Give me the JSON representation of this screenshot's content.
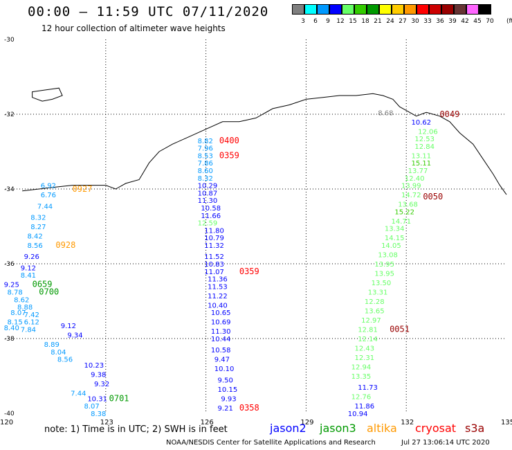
{
  "header": {
    "title": "00:00 – 11:59 UTC 07/11/2020",
    "subtitle": "12 hour collection of altimeter wave heights"
  },
  "scale": {
    "unit": "(ft)",
    "colors": [
      "#7f7f7f",
      "#00ffff",
      "#0099ff",
      "#0000ff",
      "#66ff66",
      "#33cc00",
      "#009900",
      "#ffff00",
      "#ffcc00",
      "#ff9900",
      "#ff0000",
      "#cc0000",
      "#990000",
      "#663333",
      "#ff66ff",
      "#000000"
    ],
    "labels": [
      "3",
      "6",
      "9",
      "12",
      "15",
      "18",
      "21",
      "24",
      "27",
      "30",
      "33",
      "36",
      "39",
      "42",
      "45",
      "70"
    ]
  },
  "map": {
    "lon_range": [
      120,
      135
    ],
    "lat_range": [
      -40,
      -30
    ],
    "lon_ticks": [
      {
        "v": 120,
        "t": "120"
      },
      {
        "v": 123,
        "t": "123"
      },
      {
        "v": 126,
        "t": "126"
      },
      {
        "v": 129,
        "t": "129"
      },
      {
        "v": 132,
        "t": "132"
      },
      {
        "v": 135,
        "t": "135"
      }
    ],
    "lat_ticks": [
      {
        "v": -30,
        "t": "-30"
      },
      {
        "v": -32,
        "t": "-32"
      },
      {
        "v": -34,
        "t": "-34"
      },
      {
        "v": -36,
        "t": "-36"
      },
      {
        "v": -38,
        "t": "-38"
      },
      {
        "v": -40,
        "t": "-40"
      }
    ],
    "coastline": [
      [
        120.5,
        -34.05
      ],
      [
        121.0,
        -34.0
      ],
      [
        121.5,
        -33.95
      ],
      [
        122.0,
        -33.9
      ],
      [
        122.5,
        -33.9
      ],
      [
        123.0,
        -33.9
      ],
      [
        123.3,
        -34.0
      ],
      [
        123.6,
        -33.85
      ],
      [
        124.0,
        -33.75
      ],
      [
        124.3,
        -33.3
      ],
      [
        124.6,
        -33.0
      ],
      [
        125.0,
        -32.8
      ],
      [
        125.5,
        -32.6
      ],
      [
        126.0,
        -32.4
      ],
      [
        126.5,
        -32.2
      ],
      [
        127.0,
        -32.2
      ],
      [
        127.5,
        -32.1
      ],
      [
        128.0,
        -31.85
      ],
      [
        128.5,
        -31.75
      ],
      [
        129.0,
        -31.6
      ],
      [
        129.5,
        -31.55
      ],
      [
        130.0,
        -31.5
      ],
      [
        130.5,
        -31.5
      ],
      [
        131.0,
        -31.45
      ],
      [
        131.3,
        -31.5
      ],
      [
        131.6,
        -31.6
      ],
      [
        131.8,
        -31.8
      ],
      [
        132.0,
        -31.9
      ],
      [
        132.3,
        -32.05
      ],
      [
        132.6,
        -31.95
      ],
      [
        133.0,
        -32.05
      ],
      [
        133.3,
        -32.2
      ],
      [
        133.6,
        -32.5
      ],
      [
        134.0,
        -32.8
      ],
      [
        134.3,
        -33.2
      ],
      [
        134.6,
        -33.6
      ],
      [
        134.8,
        -33.9
      ],
      [
        135.0,
        -34.15
      ]
    ],
    "islands": [
      [
        [
          120.8,
          -31.4
        ],
        [
          121.2,
          -31.35
        ],
        [
          121.6,
          -31.3
        ],
        [
          121.7,
          -31.5
        ],
        [
          121.4,
          -31.6
        ],
        [
          121.1,
          -31.65
        ],
        [
          120.8,
          -31.55
        ]
      ]
    ]
  },
  "tracks": [
    {
      "name": "jason2",
      "color": "#0000ff",
      "labels": [
        {
          "lon": 132.4,
          "lat": -32.2,
          "t": "10.62",
          "c": "#0000ff"
        },
        {
          "lon": 126.0,
          "lat": -33.9,
          "t": "10.29",
          "c": "#0000ff"
        },
        {
          "lon": 126.0,
          "lat": -34.1,
          "t": "10.87",
          "c": "#0000ff"
        },
        {
          "lon": 126.0,
          "lat": -34.3,
          "t": "11.30",
          "c": "#0000ff"
        },
        {
          "lon": 126.1,
          "lat": -34.5,
          "t": "10.58",
          "c": "#0000ff"
        },
        {
          "lon": 126.1,
          "lat": -34.7,
          "t": "11.66",
          "c": "#0000ff"
        },
        {
          "lon": 126.2,
          "lat": -35.1,
          "t": "11.80",
          "c": "#0000ff"
        },
        {
          "lon": 126.2,
          "lat": -35.3,
          "t": "10.79",
          "c": "#0000ff"
        },
        {
          "lon": 126.2,
          "lat": -35.5,
          "t": "11.32",
          "c": "#0000ff"
        },
        {
          "lon": 126.2,
          "lat": -35.8,
          "t": "11.52",
          "c": "#0000ff"
        },
        {
          "lon": 126.2,
          "lat": -36.0,
          "t": "10.83",
          "c": "#0000ff"
        },
        {
          "lon": 126.2,
          "lat": -36.2,
          "t": "11.07",
          "c": "#0000ff"
        },
        {
          "lon": 126.3,
          "lat": -36.4,
          "t": "11.36",
          "c": "#0000ff"
        },
        {
          "lon": 126.3,
          "lat": -36.6,
          "t": "11.53",
          "c": "#0000ff"
        },
        {
          "lon": 126.3,
          "lat": -36.85,
          "t": "11.22",
          "c": "#0000ff"
        },
        {
          "lon": 126.3,
          "lat": -37.1,
          "t": "10.40",
          "c": "#0000ff"
        },
        {
          "lon": 126.4,
          "lat": -37.3,
          "t": "10.65",
          "c": "#0000ff"
        },
        {
          "lon": 126.4,
          "lat": -37.55,
          "t": "10.69",
          "c": "#0000ff"
        },
        {
          "lon": 126.4,
          "lat": -37.8,
          "t": "11.30",
          "c": "#0000ff"
        },
        {
          "lon": 126.4,
          "lat": -38.0,
          "t": "10.44",
          "c": "#0000ff"
        },
        {
          "lon": 126.4,
          "lat": -38.3,
          "t": "10.58",
          "c": "#0000ff"
        },
        {
          "lon": 126.5,
          "lat": -38.55,
          "t": "9.47",
          "c": "#0000ff"
        },
        {
          "lon": 126.5,
          "lat": -38.8,
          "t": "10.10",
          "c": "#0000ff"
        },
        {
          "lon": 126.6,
          "lat": -39.1,
          "t": "9.50",
          "c": "#0000ff"
        },
        {
          "lon": 126.6,
          "lat": -39.35,
          "t": "10.15",
          "c": "#0000ff"
        },
        {
          "lon": 126.7,
          "lat": -39.6,
          "t": "9.93",
          "c": "#0000ff"
        },
        {
          "lon": 126.6,
          "lat": -39.85,
          "t": "9.21",
          "c": "#0000ff"
        },
        {
          "lon": 121.9,
          "lat": -37.65,
          "t": "9.12",
          "c": "#0000ff"
        },
        {
          "lon": 122.1,
          "lat": -37.9,
          "t": "9.34",
          "c": "#0000ff"
        },
        {
          "lon": 122.6,
          "lat": -38.7,
          "t": "10.23",
          "c": "#0000ff"
        },
        {
          "lon": 122.8,
          "lat": -38.95,
          "t": "9.38",
          "c": "#0000ff"
        },
        {
          "lon": 122.9,
          "lat": -39.2,
          "t": "9.32",
          "c": "#0000ff"
        },
        {
          "lon": 122.7,
          "lat": -39.6,
          "t": "10.31",
          "c": "#0000ff"
        },
        {
          "lon": 130.8,
          "lat": -39.3,
          "t": "11.73",
          "c": "#0000ff"
        },
        {
          "lon": 130.7,
          "lat": -39.8,
          "t": "11.86",
          "c": "#0000ff"
        },
        {
          "lon": 130.5,
          "lat": -40.0,
          "t": "10.94",
          "c": "#0000ff"
        }
      ]
    },
    {
      "name": "jason3",
      "color": "#33cc33",
      "labels": [
        {
          "lon": 132.6,
          "lat": -32.45,
          "t": "12.06",
          "c": "#66ff66"
        },
        {
          "lon": 132.5,
          "lat": -32.65,
          "t": "12.53",
          "c": "#66ff66"
        },
        {
          "lon": 132.5,
          "lat": -32.85,
          "t": "12.84",
          "c": "#66ff66"
        },
        {
          "lon": 132.4,
          "lat": -33.1,
          "t": "13.11",
          "c": "#66ff66"
        },
        {
          "lon": 132.4,
          "lat": -33.3,
          "t": "15.11",
          "c": "#33cc00"
        },
        {
          "lon": 132.3,
          "lat": -33.5,
          "t": "13.77",
          "c": "#66ff66"
        },
        {
          "lon": 132.2,
          "lat": -33.7,
          "t": "12.40",
          "c": "#66ff66"
        },
        {
          "lon": 132.1,
          "lat": -33.9,
          "t": "13.99",
          "c": "#66ff66"
        },
        {
          "lon": 132.1,
          "lat": -34.15,
          "t": "14.72",
          "c": "#66ff66"
        },
        {
          "lon": 132.0,
          "lat": -34.4,
          "t": "13.68",
          "c": "#66ff66"
        },
        {
          "lon": 131.9,
          "lat": -34.6,
          "t": "15.22",
          "c": "#33cc00"
        },
        {
          "lon": 131.8,
          "lat": -34.85,
          "t": "14.71",
          "c": "#66ff66"
        },
        {
          "lon": 131.6,
          "lat": -35.05,
          "t": "13.34",
          "c": "#66ff66"
        },
        {
          "lon": 131.6,
          "lat": -35.3,
          "t": "14.15",
          "c": "#66ff66"
        },
        {
          "lon": 131.5,
          "lat": -35.5,
          "t": "14.05",
          "c": "#66ff66"
        },
        {
          "lon": 131.4,
          "lat": -35.75,
          "t": "13.08",
          "c": "#66ff66"
        },
        {
          "lon": 131.3,
          "lat": -36.0,
          "t": "13.95",
          "c": "#66ff66"
        },
        {
          "lon": 131.3,
          "lat": -36.25,
          "t": "13.95",
          "c": "#66ff66"
        },
        {
          "lon": 131.2,
          "lat": -36.5,
          "t": "13.50",
          "c": "#66ff66"
        },
        {
          "lon": 131.1,
          "lat": -36.75,
          "t": "13.31",
          "c": "#66ff66"
        },
        {
          "lon": 131.0,
          "lat": -37.0,
          "t": "12.28",
          "c": "#66ff66"
        },
        {
          "lon": 131.0,
          "lat": -37.25,
          "t": "13.65",
          "c": "#66ff66"
        },
        {
          "lon": 130.9,
          "lat": -37.5,
          "t": "12.97",
          "c": "#66ff66"
        },
        {
          "lon": 130.8,
          "lat": -37.75,
          "t": "12.81",
          "c": "#66ff66"
        },
        {
          "lon": 130.8,
          "lat": -38.0,
          "t": "12.14",
          "c": "#66ff66"
        },
        {
          "lon": 130.7,
          "lat": -38.25,
          "t": "12.43",
          "c": "#66ff66"
        },
        {
          "lon": 130.7,
          "lat": -38.5,
          "t": "12.31",
          "c": "#66ff66"
        },
        {
          "lon": 130.6,
          "lat": -38.75,
          "t": "12.94",
          "c": "#66ff66"
        },
        {
          "lon": 130.6,
          "lat": -39.0,
          "t": "13.35",
          "c": "#66ff66"
        },
        {
          "lon": 130.6,
          "lat": -39.55,
          "t": "12.76",
          "c": "#66ff66"
        },
        {
          "lon": 126.0,
          "lat": -34.9,
          "t": "12.59",
          "c": "#66ff66"
        }
      ]
    },
    {
      "name": "altika",
      "color": "#ff9900",
      "labels": [
        {
          "lon": 126.0,
          "lat": -32.7,
          "t": "8.82",
          "c": "#0099ff"
        },
        {
          "lon": 126.0,
          "lat": -32.9,
          "t": "7.96",
          "c": "#0099ff"
        },
        {
          "lon": 126.0,
          "lat": -33.1,
          "t": "8.53",
          "c": "#0099ff"
        },
        {
          "lon": 126.0,
          "lat": -33.3,
          "t": "7.86",
          "c": "#0099ff"
        },
        {
          "lon": 126.0,
          "lat": -33.5,
          "t": "8.60",
          "c": "#0099ff"
        },
        {
          "lon": 126.0,
          "lat": -33.7,
          "t": "8.32",
          "c": "#0099ff"
        },
        {
          "lon": 121.3,
          "lat": -33.9,
          "t": "6.92",
          "c": "#0099ff"
        },
        {
          "lon": 121.3,
          "lat": -34.15,
          "t": "6.76",
          "c": "#0099ff"
        },
        {
          "lon": 121.2,
          "lat": -34.45,
          "t": "7.44",
          "c": "#0099ff"
        },
        {
          "lon": 121.0,
          "lat": -34.75,
          "t": "8.32",
          "c": "#0099ff"
        },
        {
          "lon": 121.0,
          "lat": -35.0,
          "t": "8.27",
          "c": "#0099ff"
        },
        {
          "lon": 120.9,
          "lat": -35.25,
          "t": "8.42",
          "c": "#0099ff"
        },
        {
          "lon": 120.9,
          "lat": -35.5,
          "t": "8.56",
          "c": "#0099ff"
        },
        {
          "lon": 120.8,
          "lat": -35.8,
          "t": "9.26",
          "c": "#0000ff"
        },
        {
          "lon": 120.7,
          "lat": -36.1,
          "t": "9.12",
          "c": "#0000ff"
        },
        {
          "lon": 120.7,
          "lat": -36.3,
          "t": "8.41",
          "c": "#0099ff"
        },
        {
          "lon": 120.2,
          "lat": -36.55,
          "t": "9.25",
          "c": "#0000ff"
        },
        {
          "lon": 120.3,
          "lat": -36.75,
          "t": "8.78",
          "c": "#0099ff"
        },
        {
          "lon": 120.5,
          "lat": -36.95,
          "t": "8.62",
          "c": "#0099ff"
        },
        {
          "lon": 120.6,
          "lat": -37.15,
          "t": "8.88",
          "c": "#0099ff"
        },
        {
          "lon": 120.4,
          "lat": -37.3,
          "t": "8.07",
          "c": "#0099ff"
        },
        {
          "lon": 120.8,
          "lat": -37.35,
          "t": "7.42",
          "c": "#0099ff"
        },
        {
          "lon": 120.3,
          "lat": -37.55,
          "t": "8.15",
          "c": "#0099ff"
        },
        {
          "lon": 120.8,
          "lat": -37.55,
          "t": "6.12",
          "c": "#0099ff"
        },
        {
          "lon": 120.2,
          "lat": -37.7,
          "t": "8.40",
          "c": "#0099ff"
        },
        {
          "lon": 120.7,
          "lat": -37.75,
          "t": "7.84",
          "c": "#0099ff"
        },
        {
          "lon": 121.4,
          "lat": -38.15,
          "t": "8.89",
          "c": "#0099ff"
        },
        {
          "lon": 121.6,
          "lat": -38.35,
          "t": "8.04",
          "c": "#0099ff"
        },
        {
          "lon": 121.8,
          "lat": -38.55,
          "t": "8.56",
          "c": "#0099ff"
        },
        {
          "lon": 122.2,
          "lat": -39.45,
          "t": "7.44",
          "c": "#0099ff"
        },
        {
          "lon": 122.6,
          "lat": -39.8,
          "t": "8.07",
          "c": "#0099ff"
        },
        {
          "lon": 122.8,
          "lat": -40.0,
          "t": "8.38",
          "c": "#0099ff"
        },
        {
          "lon": 131.4,
          "lat": -31.95,
          "t": "8.68",
          "c": "#7f7f7f"
        }
      ]
    }
  ],
  "time_labels": [
    {
      "lon": 126.4,
      "lat": -32.7,
      "t": "0400",
      "c": "#ff0000"
    },
    {
      "lon": 126.4,
      "lat": -33.1,
      "t": "0359",
      "c": "#ff0000"
    },
    {
      "lon": 127.0,
      "lat": -36.2,
      "t": "0359",
      "c": "#ff0000"
    },
    {
      "lon": 127.0,
      "lat": -39.85,
      "t": "0358",
      "c": "#ff0000"
    },
    {
      "lon": 122.0,
      "lat": -34.0,
      "t": "0927",
      "c": "#ff9900"
    },
    {
      "lon": 121.5,
      "lat": -35.5,
      "t": "0928",
      "c": "#ff9900"
    },
    {
      "lon": 120.8,
      "lat": -36.55,
      "t": "0659",
      "c": "#009900"
    },
    {
      "lon": 121.0,
      "lat": -36.75,
      "t": "0700",
      "c": "#009900"
    },
    {
      "lon": 123.1,
      "lat": -39.6,
      "t": "0701",
      "c": "#009900"
    },
    {
      "lon": 133.0,
      "lat": -32.0,
      "t": "0049",
      "c": "#990000"
    },
    {
      "lon": 132.5,
      "lat": -34.2,
      "t": "0050",
      "c": "#990000"
    },
    {
      "lon": 131.5,
      "lat": -37.75,
      "t": "0051",
      "c": "#990000"
    }
  ],
  "footer": {
    "note": "note: 1) Time is in UTC; 2) SWH is in feet",
    "missions": [
      {
        "name": "jason2",
        "color": "#0000ff"
      },
      {
        "name": "jason3",
        "color": "#009900"
      },
      {
        "name": "altika",
        "color": "#ff9900"
      },
      {
        "name": "cryosat",
        "color": "#ff0000"
      },
      {
        "name": "s3a",
        "color": "#990000"
      }
    ],
    "credit": "NOAA/NESDIS Center for Satellite Applications and Research",
    "date": "Jul 27 13:06:14 UTC 2020"
  }
}
